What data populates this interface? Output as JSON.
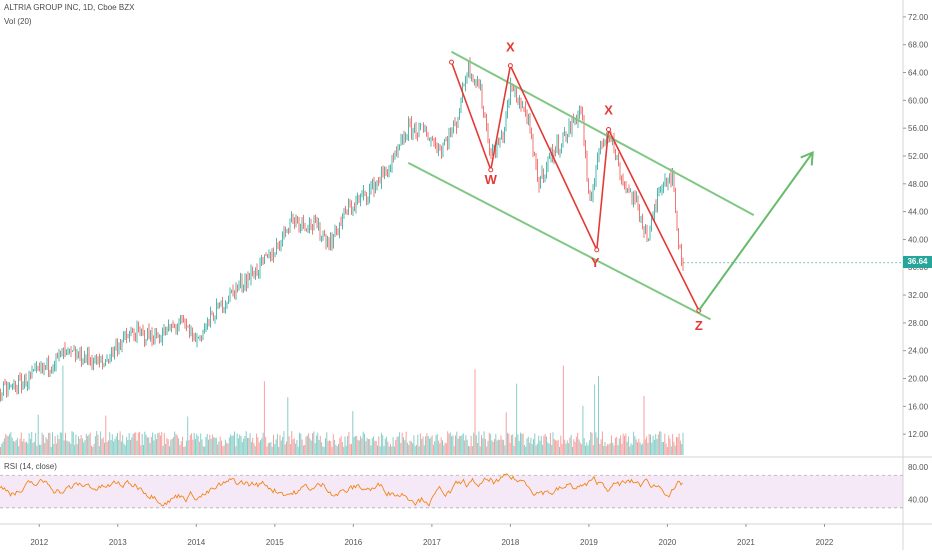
{
  "header": {
    "symbol_line": "ALTRIA GROUP INC, 1D, Cboe BZX",
    "volume_label": "Vol (20)"
  },
  "rsi_panel": {
    "label": "RSI (14, close)",
    "ticks": [
      80,
      40
    ],
    "band": [
      30,
      70
    ],
    "ylim": [
      15,
      90
    ]
  },
  "last_price": "36.64",
  "colors": {
    "up": "#26a69a",
    "down": "#ef5350",
    "channel": "#81c784",
    "wave": "#e53935",
    "projection": "#66bb6a",
    "rsi_line": "#f57c00",
    "rsi_band": "#e1bee7"
  },
  "chart_data": {
    "type": "line",
    "title": "ALTRIA GROUP INC, 1D, Cboe BZX",
    "x_ticks": [
      "2012",
      "2013",
      "2014",
      "2015",
      "2016",
      "2017",
      "2018",
      "2019",
      "2020",
      "2021",
      "2022"
    ],
    "y_ticks": [
      "72.00",
      "68.00",
      "64.00",
      "60.00",
      "56.00",
      "52.00",
      "48.00",
      "44.00",
      "40.00",
      "36.00",
      "32.00",
      "28.00",
      "24.00",
      "20.00",
      "16.00",
      "12.00"
    ],
    "xlim": [
      2011.5,
      2023.0
    ],
    "ylim": [
      9.0,
      74.0
    ],
    "series": [
      {
        "x": [
          2011.5,
          2011.8,
          2012.0,
          2012.3,
          2012.6,
          2012.8,
          2013.0,
          2013.2,
          2013.5,
          2013.8,
          2014.0,
          2014.2,
          2014.5,
          2014.8,
          2015.0,
          2015.2,
          2015.5,
          2015.7,
          2015.9,
          2016.2,
          2016.5,
          2016.7,
          2016.9,
          2017.1,
          2017.3,
          2017.45,
          2017.6,
          2017.75,
          2017.9,
          2018.0,
          2018.2,
          2018.35,
          2018.5,
          2018.7,
          2018.9,
          2019.0,
          2019.1,
          2019.25,
          2019.4,
          2019.6,
          2019.75,
          2019.9,
          2020.05,
          2020.15,
          2020.2
        ],
        "values": [
          18.0,
          19.5,
          21.0,
          23.5,
          23.0,
          22.0,
          25.0,
          26.5,
          26.0,
          28.0,
          25.5,
          29.0,
          33.0,
          36.0,
          38.5,
          43.0,
          42.0,
          39.5,
          44.0,
          47.0,
          51.0,
          56.0,
          55.5,
          53.0,
          56.5,
          65.0,
          62.0,
          52.0,
          55.0,
          62.0,
          58.0,
          48.0,
          52.0,
          55.0,
          59.0,
          44.0,
          52.0,
          56.0,
          49.0,
          45.0,
          40.0,
          48.0,
          49.5,
          38.0,
          36.64
        ]
      }
    ],
    "channel_upper": {
      "x": [
        2017.25,
        2021.1
      ],
      "values": [
        67.0,
        43.5
      ]
    },
    "channel_lower": {
      "x": [
        2016.7,
        2020.55
      ],
      "values": [
        51.0,
        28.5
      ]
    },
    "wave_path": {
      "x": [
        2017.25,
        2017.75,
        2018.0,
        2019.1,
        2019.25,
        2020.4
      ],
      "values": [
        65.5,
        50.0,
        65.0,
        38.5,
        55.8,
        29.8
      ]
    },
    "wave_labels": [
      {
        "text": "X",
        "x": 2018.0,
        "y": 67.0
      },
      {
        "text": "W",
        "x": 2017.75,
        "y": 48.0
      },
      {
        "text": "X",
        "x": 2019.25,
        "y": 58.0
      },
      {
        "text": "Y",
        "x": 2019.08,
        "y": 36.0
      },
      {
        "text": "Z",
        "x": 2020.4,
        "y": 27.0
      }
    ],
    "projection": {
      "x": [
        2020.4,
        2021.85
      ],
      "values": [
        29.8,
        52.5
      ]
    }
  }
}
